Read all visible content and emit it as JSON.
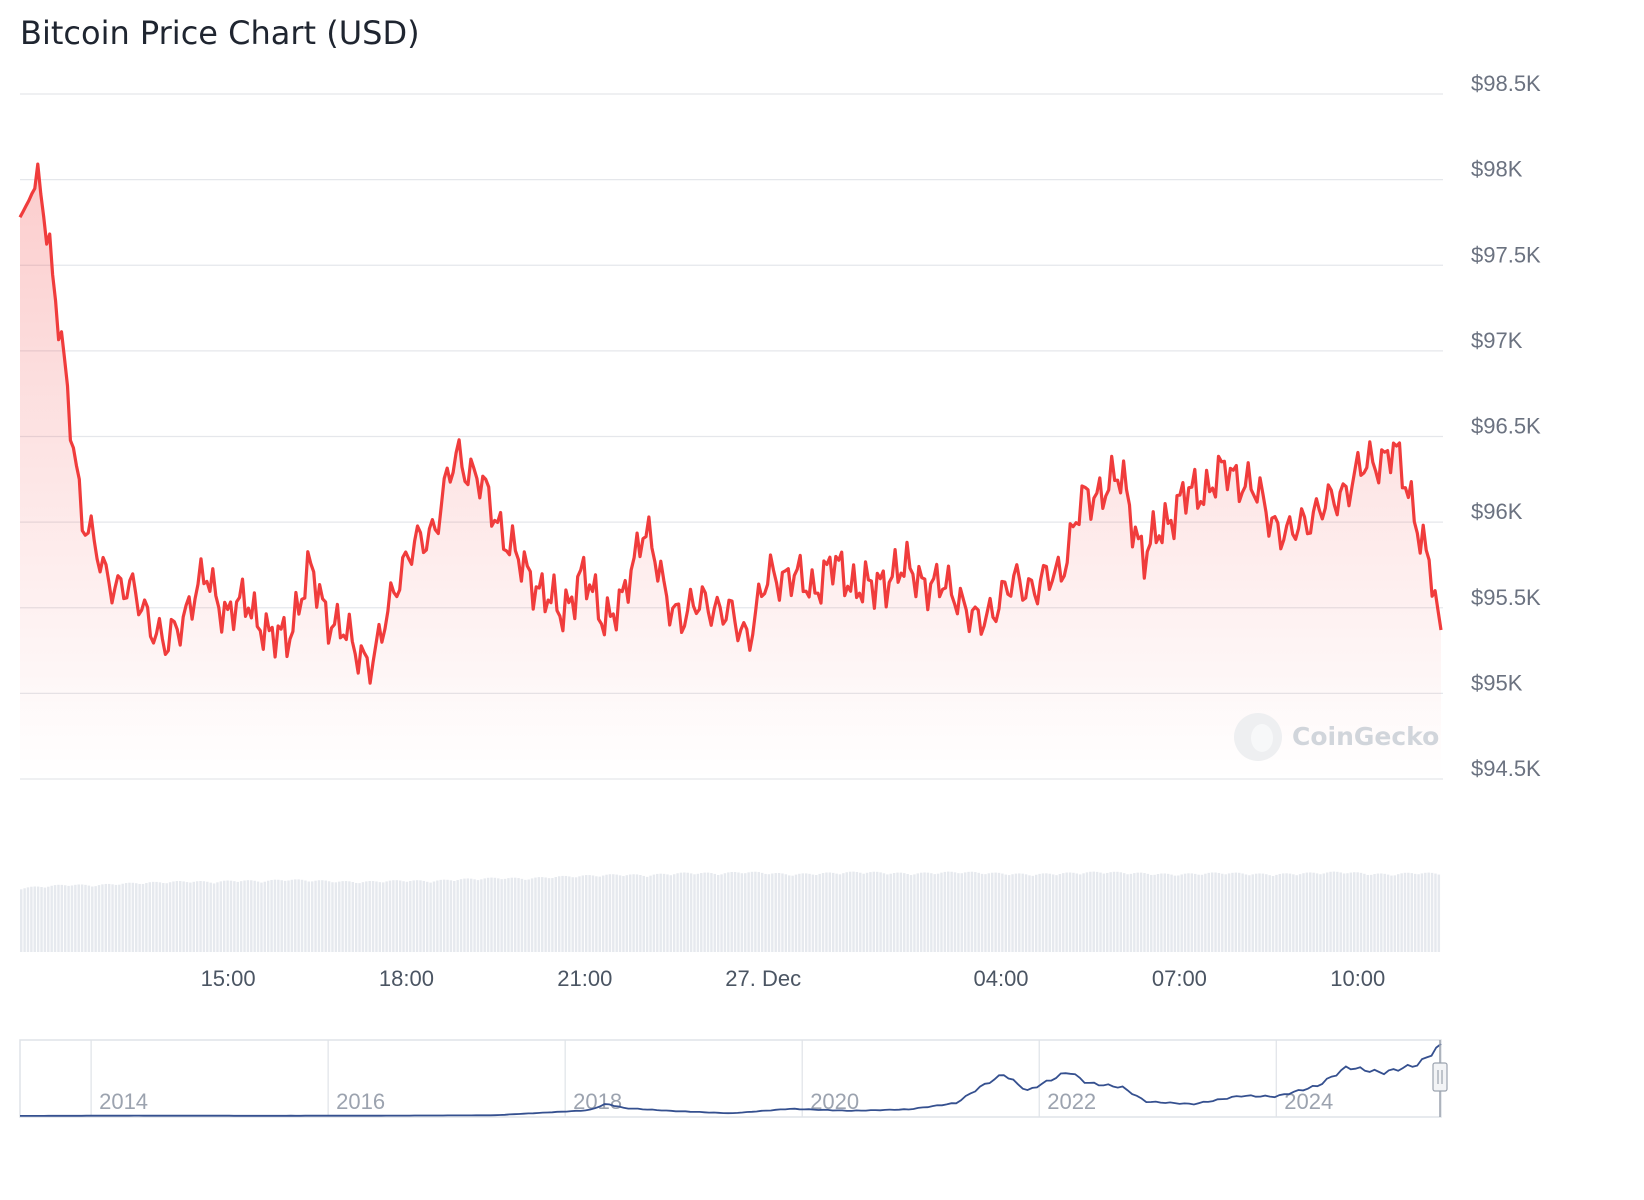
{
  "title": "Bitcoin Price Chart (USD)",
  "watermark": "CoinGecko",
  "colors": {
    "price_line": "#f03c3c",
    "area_fill": "#f03c3c",
    "grid": "#e5e7eb",
    "volume_bar": "#e6e9ee",
    "navigator_line": "#35508f"
  },
  "chart_data": [
    {
      "type": "area",
      "title": "Bitcoin Price Chart (USD)",
      "ylabel": "",
      "xlabel": "",
      "ylim": [
        94500,
        98500
      ],
      "yticks": [
        98500,
        98000,
        97500,
        97000,
        96500,
        96000,
        95500,
        95000,
        94500
      ],
      "ytick_labels": [
        "$98.5K",
        "$98K",
        "$97.5K",
        "$97K",
        "$96.5K",
        "$96K",
        "$95.5K",
        "$95K",
        "$94.5K"
      ],
      "xlim_hours": [
        0,
        23.9
      ],
      "xticks_hours": [
        3.5,
        6.5,
        9.5,
        12.5,
        16.5,
        19.5,
        22.5
      ],
      "xtick_labels": [
        "15:00",
        "18:00",
        "21:00",
        "27. Dec",
        "04:00",
        "07:00",
        "10:00"
      ],
      "grid": true,
      "series": [
        {
          "name": "Price",
          "x_hours": [
            0,
            0.35,
            0.7,
            1.05,
            1.4,
            1.75,
            2.1,
            2.45,
            2.8,
            3.15,
            3.5,
            3.85,
            4.2,
            4.55,
            4.9,
            5.25,
            5.6,
            5.95,
            6.3,
            6.65,
            7.0,
            7.35,
            7.7,
            8.05,
            8.4,
            8.75,
            9.1,
            9.45,
            9.8,
            10.15,
            10.5,
            10.85,
            11.2,
            11.55,
            11.9,
            12.25,
            12.6,
            12.95,
            13.3,
            13.65,
            14.0,
            14.35,
            14.7,
            15.05,
            15.4,
            15.75,
            16.1,
            16.45,
            16.8,
            17.15,
            17.5,
            17.85,
            18.2,
            18.55,
            18.9,
            19.25,
            19.6,
            19.95,
            20.3,
            20.65,
            21.0,
            21.35,
            21.7,
            22.05,
            22.4,
            22.75,
            23.1,
            23.45,
            23.8,
            23.9
          ],
          "values": [
            97780,
            98010,
            97000,
            96050,
            95700,
            95620,
            95500,
            95250,
            95500,
            95680,
            95450,
            95550,
            95300,
            95380,
            95720,
            95400,
            95300,
            95150,
            95650,
            95850,
            96000,
            96400,
            96250,
            96000,
            95750,
            95620,
            95450,
            95700,
            95450,
            95520,
            96020,
            95550,
            95450,
            95550,
            95450,
            95350,
            95680,
            95700,
            95600,
            95750,
            95650,
            95600,
            95720,
            95700,
            95620,
            95600,
            95380,
            95550,
            95650,
            95620,
            95720,
            96100,
            96200,
            96250,
            95780,
            96000,
            96150,
            96200,
            96300,
            96230,
            96050,
            95900,
            96050,
            96100,
            96250,
            96350,
            96420,
            96080,
            95600,
            95370
          ]
        },
        {
          "name": "Volume",
          "values_relative": [
            0.76,
            0.78,
            0.8,
            0.79,
            0.81,
            0.82,
            0.83,
            0.84,
            0.83,
            0.85,
            0.84,
            0.86,
            0.85,
            0.84,
            0.83,
            0.84,
            0.85,
            0.84,
            0.86,
            0.87,
            0.88,
            0.87,
            0.89,
            0.9,
            0.91,
            0.92,
            0.91,
            0.93,
            0.94,
            0.93,
            0.95,
            0.94,
            0.92,
            0.93,
            0.94,
            0.95,
            0.94,
            0.93,
            0.94,
            0.95,
            0.94,
            0.93,
            0.92,
            0.93,
            0.94,
            0.95,
            0.94,
            0.93,
            0.92,
            0.93,
            0.94,
            0.93,
            0.92,
            0.93,
            0.94,
            0.95,
            0.93,
            0.92,
            0.94,
            0.93
          ]
        }
      ]
    },
    {
      "type": "line",
      "title": "Navigator",
      "xlim_years": [
        2013.0,
        2024.99
      ],
      "xticks_years": [
        2013.6,
        2015.6,
        2017.6,
        2019.6,
        2021.6,
        2023.6
      ],
      "xtick_labels": [
        "2014",
        "2016",
        "2018",
        "2020",
        "2022",
        "2024"
      ],
      "series": [
        {
          "name": "BTC price history",
          "x_years": [
            2013.0,
            2014.0,
            2015.0,
            2016.0,
            2017.0,
            2017.8,
            2017.95,
            2018.1,
            2018.5,
            2019.0,
            2019.5,
            2020.0,
            2020.5,
            2020.9,
            2021.1,
            2021.3,
            2021.5,
            2021.85,
            2022.0,
            2022.3,
            2022.5,
            2022.9,
            2023.3,
            2023.6,
            2023.95,
            2024.2,
            2024.5,
            2024.8,
            2024.99
          ],
          "values": [
            130,
            500,
            300,
            430,
            1000,
            8000,
            17000,
            11000,
            7000,
            3700,
            10000,
            7200,
            9200,
            18000,
            40000,
            58000,
            35000,
            62000,
            46000,
            40000,
            20000,
            16500,
            28000,
            27000,
            42000,
            68000,
            60000,
            72000,
            98000
          ]
        }
      ]
    }
  ]
}
